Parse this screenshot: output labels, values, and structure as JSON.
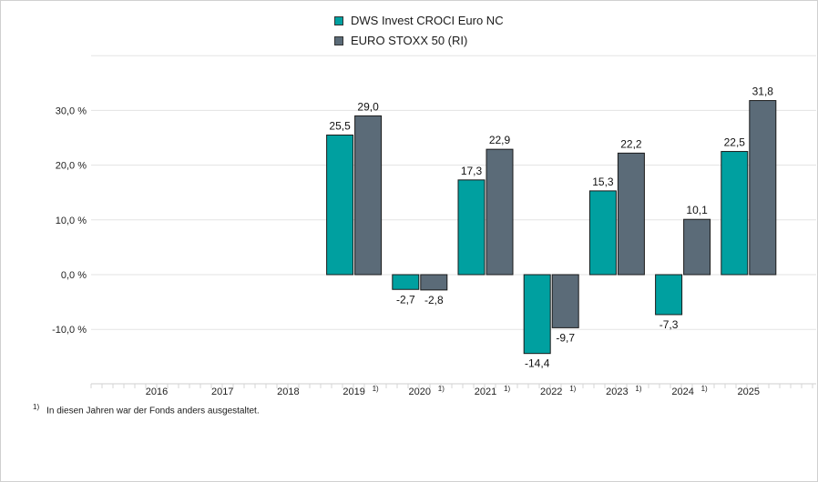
{
  "chart_data": {
    "type": "bar",
    "categories": [
      "2016",
      "2017",
      "2018",
      "2019",
      "2020",
      "2021",
      "2022",
      "2023",
      "2024",
      "2025"
    ],
    "category_footnotes": [
      "",
      "",
      "",
      "1)",
      "1)",
      "1)",
      "1)",
      "1)",
      "1)",
      ""
    ],
    "series": [
      {
        "name": "DWS Invest CROCI Euro NC",
        "color": "#00A0A0",
        "values": [
          null,
          null,
          null,
          25.5,
          -2.7,
          17.3,
          -14.4,
          15.3,
          -7.3,
          22.5
        ],
        "labels": [
          "",
          "",
          "",
          "25,5",
          "-2,7",
          "17,3",
          "-14,4",
          "15,3",
          "-7,3",
          "22,5"
        ]
      },
      {
        "name": "EURO STOXX 50 (RI)",
        "color": "#5B6B78",
        "values": [
          null,
          null,
          null,
          29.0,
          -2.8,
          22.9,
          -9.7,
          22.2,
          10.1,
          31.8
        ],
        "labels": [
          "",
          "",
          "",
          "29,0",
          "-2,8",
          "22,9",
          "-9,7",
          "22,2",
          "10,1",
          "31,8"
        ]
      }
    ],
    "yticks": [
      30,
      20,
      10,
      0,
      -10
    ],
    "ytick_labels": [
      "30,0 %",
      "20,0 %",
      "10,0 %",
      "0,0 %",
      "-10,0 %"
    ],
    "ylim": [
      -20,
      40
    ],
    "grid": true,
    "legend_position": "top-center"
  },
  "footnote": {
    "mark": "1)",
    "text": "In diesen Jahren war der Fonds anders ausgestaltet."
  }
}
